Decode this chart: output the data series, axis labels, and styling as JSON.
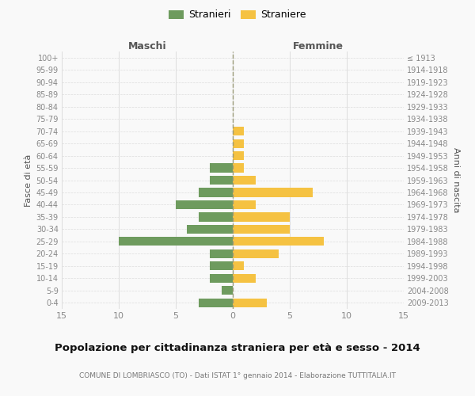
{
  "age_groups": [
    "100+",
    "95-99",
    "90-94",
    "85-89",
    "80-84",
    "75-79",
    "70-74",
    "65-69",
    "60-64",
    "55-59",
    "50-54",
    "45-49",
    "40-44",
    "35-39",
    "30-34",
    "25-29",
    "20-24",
    "15-19",
    "10-14",
    "5-9",
    "0-4"
  ],
  "birth_years": [
    "≤ 1913",
    "1914-1918",
    "1919-1923",
    "1924-1928",
    "1929-1933",
    "1934-1938",
    "1939-1943",
    "1944-1948",
    "1949-1953",
    "1954-1958",
    "1959-1963",
    "1964-1968",
    "1969-1973",
    "1974-1978",
    "1979-1983",
    "1984-1988",
    "1989-1993",
    "1994-1998",
    "1999-2003",
    "2004-2008",
    "2009-2013"
  ],
  "maschi": [
    0,
    0,
    0,
    0,
    0,
    0,
    0,
    0,
    0,
    2,
    2,
    3,
    5,
    3,
    4,
    10,
    2,
    2,
    2,
    1,
    3
  ],
  "femmine": [
    0,
    0,
    0,
    0,
    0,
    0,
    1,
    1,
    1,
    1,
    2,
    7,
    2,
    5,
    5,
    8,
    4,
    1,
    2,
    0,
    3
  ],
  "maschi_color": "#6e9b5e",
  "femmine_color": "#f5c242",
  "title": "Popolazione per cittadinanza straniera per età e sesso - 2014",
  "subtitle": "COMUNE DI LOMBRIASCO (TO) - Dati ISTAT 1° gennaio 2014 - Elaborazione TUTTITALIA.IT",
  "header_maschi": "Maschi",
  "header_femmine": "Femmine",
  "ylabel_left": "Fasce di età",
  "ylabel_right": "Anni di nascita",
  "legend_maschi": "Stranieri",
  "legend_femmine": "Straniere",
  "xlim": 15,
  "background_color": "#f9f9f9",
  "plot_bg_color": "#f9f9f9",
  "grid_color": "#dddddd",
  "bar_height": 0.72,
  "tick_color": "#888888",
  "label_color": "#555555",
  "title_color": "#111111",
  "subtitle_color": "#777777"
}
